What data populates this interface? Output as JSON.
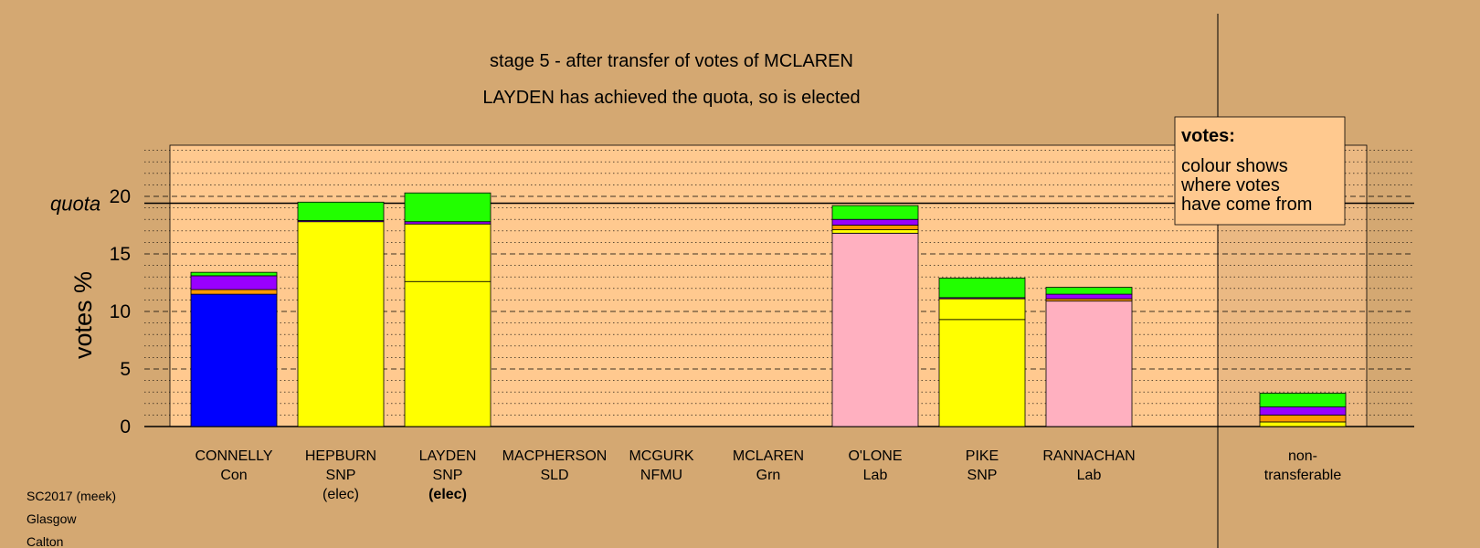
{
  "chart_data": {
    "type": "bar",
    "stacked": true,
    "title": "stage 5 - after transfer of votes of MCLAREN",
    "subtitle": "LAYDEN has achieved the quota, so is elected",
    "ylabel": "votes %",
    "quota_label": "quota",
    "quota_value": 19.4,
    "ylim": [
      0,
      24.5
    ],
    "yticks": [
      0,
      5,
      10,
      15,
      20
    ],
    "colors": {
      "background": "#d4a872",
      "plot_background": "#ffc98f",
      "Con": "#0000ff",
      "SNP": "#ffff00",
      "Lab": "#ffb0c0",
      "SLD": "#ff9900",
      "NFMU": "#9900ff",
      "Grn": "#22ff00"
    },
    "candidates": [
      {
        "name": "CONNELLY",
        "party": "Con",
        "status": "",
        "segments": [
          {
            "from": "Con",
            "value": 11.5,
            "color": "#0000ff"
          },
          {
            "from": "SLD",
            "value": 0.4,
            "color": "#ff9900"
          },
          {
            "from": "NFMU",
            "value": 1.2,
            "color": "#9900ff"
          },
          {
            "from": "Grn",
            "value": 0.3,
            "color": "#22ff00"
          }
        ]
      },
      {
        "name": "HEPBURN",
        "party": "SNP",
        "status": "(elec)",
        "segments": [
          {
            "from": "SNP",
            "value": 17.8,
            "color": "#ffff00"
          },
          {
            "from": "NFMU",
            "value": 0.1,
            "color": "#9900ff"
          },
          {
            "from": "Grn",
            "value": 1.6,
            "color": "#22ff00"
          }
        ]
      },
      {
        "name": "LAYDEN",
        "party": "SNP",
        "status": "(elec)",
        "status_bold": true,
        "segments": [
          {
            "from": "SNP",
            "value": 12.6,
            "color": "#ffff00"
          },
          {
            "from": "SNP",
            "value": 5.0,
            "color": "#ffff00"
          },
          {
            "from": "NFMU",
            "value": 0.2,
            "color": "#9900ff"
          },
          {
            "from": "Grn",
            "value": 2.5,
            "color": "#22ff00"
          }
        ]
      },
      {
        "name": "MACPHERSON",
        "party": "SLD",
        "status": "",
        "segments": []
      },
      {
        "name": "MCGURK",
        "party": "NFMU",
        "status": "",
        "segments": []
      },
      {
        "name": "MCLAREN",
        "party": "Grn",
        "status": "",
        "segments": []
      },
      {
        "name": "O'LONE",
        "party": "Lab",
        "status": "",
        "segments": [
          {
            "from": "Lab",
            "value": 16.8,
            "color": "#ffb0c0"
          },
          {
            "from": "SNP",
            "value": 0.3,
            "color": "#ffff00"
          },
          {
            "from": "SLD",
            "value": 0.4,
            "color": "#ff9900"
          },
          {
            "from": "NFMU",
            "value": 0.5,
            "color": "#9900ff"
          },
          {
            "from": "Grn",
            "value": 1.2,
            "color": "#22ff00"
          }
        ]
      },
      {
        "name": "PIKE",
        "party": "SNP",
        "status": "",
        "segments": [
          {
            "from": "SNP",
            "value": 9.3,
            "color": "#ffff00"
          },
          {
            "from": "SNP",
            "value": 1.8,
            "color": "#ffff00"
          },
          {
            "from": "NFMU",
            "value": 0.1,
            "color": "#9900ff"
          },
          {
            "from": "Grn",
            "value": 1.7,
            "color": "#22ff00"
          }
        ]
      },
      {
        "name": "RANNACHAN",
        "party": "Lab",
        "status": "",
        "segments": [
          {
            "from": "Lab",
            "value": 10.9,
            "color": "#ffb0c0"
          },
          {
            "from": "SLD",
            "value": 0.2,
            "color": "#ff9900"
          },
          {
            "from": "NFMU",
            "value": 0.4,
            "color": "#9900ff"
          },
          {
            "from": "Grn",
            "value": 0.6,
            "color": "#22ff00"
          }
        ]
      }
    ],
    "nontransferable": {
      "label_line1": "non-",
      "label_line2": "transferable",
      "segments": [
        {
          "from": "SNP",
          "value": 0.4,
          "color": "#ffff00"
        },
        {
          "from": "SLD",
          "value": 0.6,
          "color": "#ff9900"
        },
        {
          "from": "NFMU",
          "value": 0.7,
          "color": "#9900ff"
        },
        {
          "from": "Grn",
          "value": 1.2,
          "color": "#22ff00"
        }
      ]
    },
    "legend": {
      "title": "votes:",
      "lines": [
        "colour shows",
        "where votes",
        "have come from"
      ],
      "position": "top-right"
    }
  },
  "footer": {
    "lines": [
      "SC2017 (meek)",
      "Glasgow",
      "Calton"
    ]
  }
}
